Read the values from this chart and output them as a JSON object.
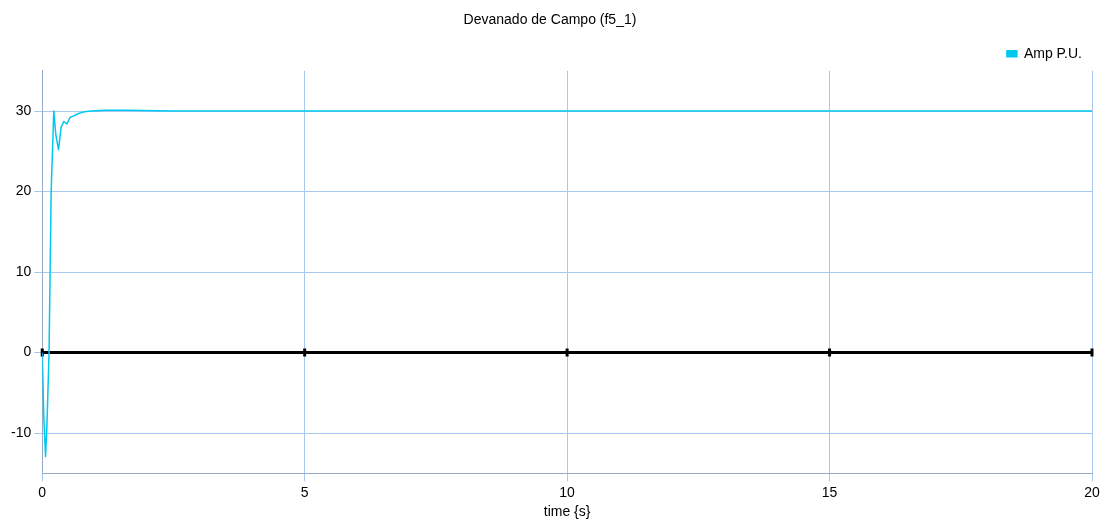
{
  "chart_data": {
    "type": "line",
    "title": "Devanado de Campo (f5_1)",
    "xlabel": "time {s}",
    "x": [
      0,
      0.03,
      0.063,
      0.09,
      0.13,
      0.17,
      0.22,
      0.26,
      0.31,
      0.36,
      0.41,
      0.47,
      0.53,
      0.6,
      0.69,
      0.8,
      0.94,
      1.2,
      1.6,
      2.5,
      5,
      10,
      15,
      20
    ],
    "series": [
      {
        "name": "Amp P.U.",
        "color": "#00c8f0",
        "values": [
          0,
          -8,
          -12.9,
          -9,
          0,
          20,
          30,
          27,
          25.2,
          28,
          28.7,
          28.4,
          29.2,
          29.4,
          29.7,
          29.9,
          30,
          30.1,
          30.1,
          30,
          30,
          30,
          30,
          30
        ]
      }
    ],
    "xlim": [
      0,
      20
    ],
    "xticks": [
      0,
      5,
      10,
      15,
      20
    ],
    "ylim": [
      -15,
      35
    ],
    "yticks": [
      -10,
      0,
      10,
      20,
      30
    ],
    "ref_lines": [
      {
        "axis": "y",
        "value": 0,
        "color": "#000000"
      }
    ],
    "grid": true,
    "legend": "top right",
    "marker": "none",
    "line_style": "solid"
  }
}
